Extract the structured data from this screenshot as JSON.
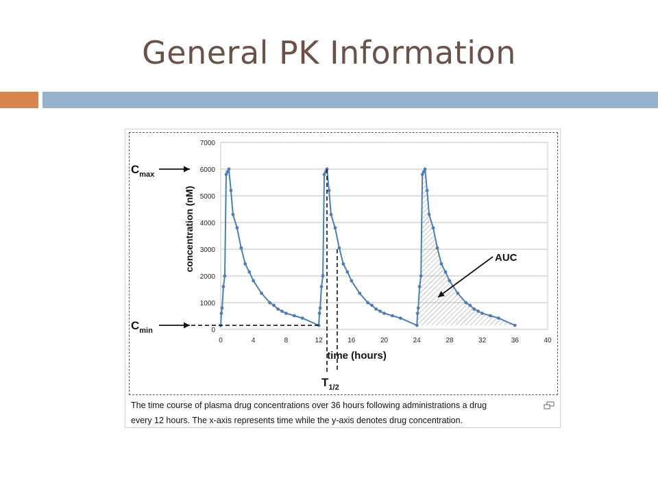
{
  "slide": {
    "title": "General PK Information",
    "accent_color": "#d9844a",
    "bar_color": "#95b3d1",
    "title_color": "#6b5148"
  },
  "figure": {
    "caption_line1": "The time course of plasma drug concentrations over 36 hours following administrations a drug",
    "caption_line2": "every 12 hours. The x-axis represents time while the y-axis denotes drug concentration.",
    "enlarge_icon": "enlarge-icon"
  },
  "chart_data": {
    "type": "line",
    "xlabel": "time (hours)",
    "ylabel": "concentration (nM)",
    "xlim": [
      0,
      40
    ],
    "ylim": [
      0,
      7000
    ],
    "xticks": [
      0,
      4,
      8,
      12,
      16,
      20,
      24,
      28,
      32,
      36,
      40
    ],
    "yticks": [
      0,
      1000,
      2000,
      3000,
      4000,
      5000,
      6000,
      7000
    ],
    "grid": true,
    "line_color": "#4a7ebb",
    "series": [
      {
        "x": [
          0,
          0.08,
          0.17,
          0.33,
          0.5,
          0.67,
          0.83,
          1,
          1.25,
          1.5,
          2,
          2.5,
          3,
          3.5,
          4,
          5,
          6,
          6.5,
          7,
          7.5,
          8,
          9,
          10,
          12,
          12.08,
          12.17,
          12.33,
          12.5,
          12.67,
          12.83,
          13,
          13.25,
          13.5,
          14,
          14.5,
          15,
          15.5,
          16,
          17,
          18,
          18.5,
          19,
          19.5,
          20,
          21,
          22,
          24,
          24.08,
          24.17,
          24.33,
          24.5,
          24.67,
          24.83,
          25,
          25.25,
          25.5,
          26,
          26.5,
          27,
          27.5,
          28,
          29,
          30,
          30.5,
          31,
          31.5,
          32,
          33,
          34,
          36
        ],
        "y": [
          150,
          600,
          800,
          1600,
          2000,
          5800,
          5900,
          6000,
          5200,
          4300,
          3800,
          3050,
          2450,
          2150,
          1820,
          1350,
          1000,
          900,
          760,
          680,
          600,
          510,
          420,
          150,
          600,
          800,
          1600,
          2000,
          5800,
          5900,
          6000,
          5200,
          4300,
          3800,
          3050,
          2450,
          2150,
          1820,
          1350,
          1000,
          900,
          760,
          680,
          600,
          510,
          420,
          150,
          600,
          800,
          1600,
          2000,
          5800,
          5900,
          6000,
          5200,
          4300,
          3800,
          3050,
          2450,
          2150,
          1820,
          1350,
          1000,
          900,
          760,
          680,
          600,
          510,
          420,
          150
        ]
      }
    ],
    "annotations": {
      "cmax": {
        "label": "C",
        "sub": "max",
        "value": 6000
      },
      "cmin": {
        "label": "C",
        "sub": "min",
        "value": 150
      },
      "thalf": {
        "label": "T",
        "sub": "1/2",
        "x_values": [
          13,
          14.25
        ],
        "concentration_at": 3000
      },
      "auc": {
        "label": "AUC",
        "shaded_range": [
          24,
          36
        ]
      }
    }
  }
}
